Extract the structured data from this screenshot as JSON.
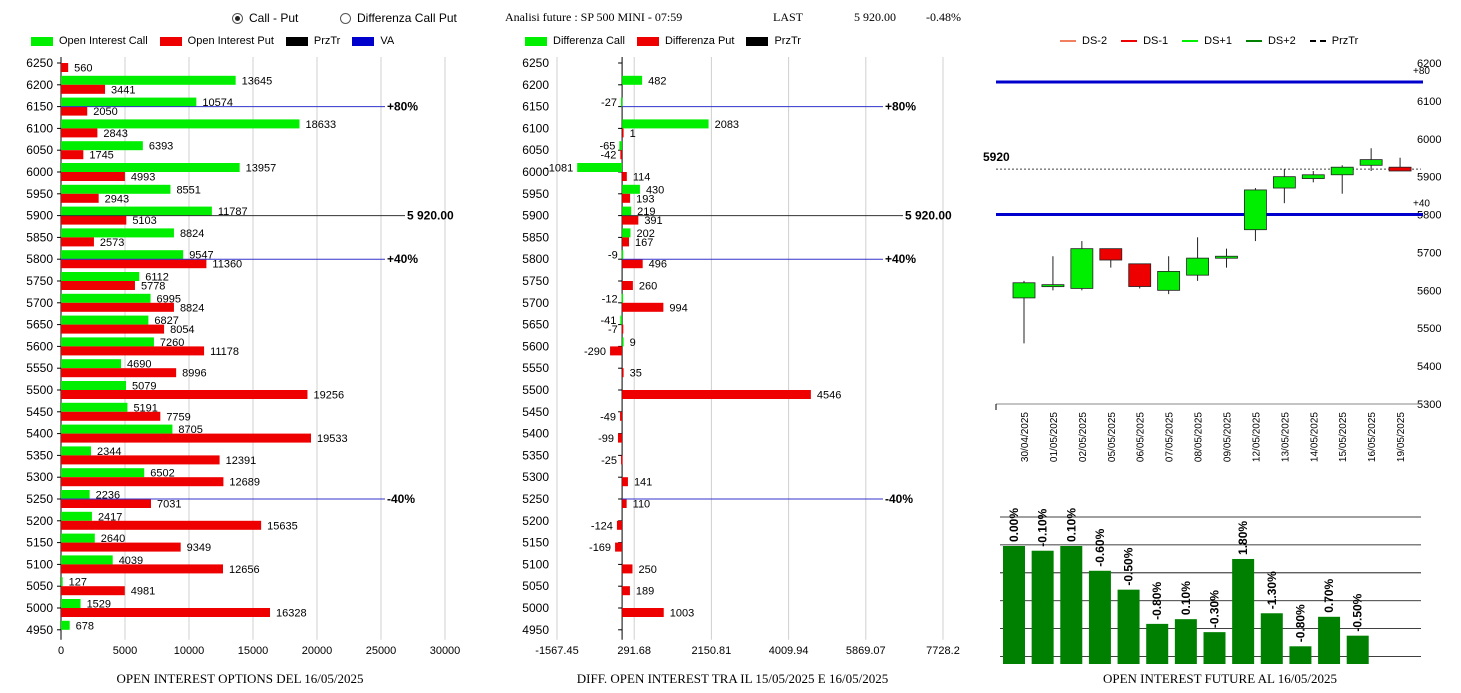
{
  "header": {
    "radio_call_put": "Call - Put",
    "radio_diff": "Differenza Call Put",
    "analysis": "Analisi future : SP 500 MINI - 07:59",
    "last_label": "LAST",
    "last_value": "5 920.00",
    "last_change": "-0.48%"
  },
  "legend1": {
    "call": "Open Interest Call",
    "put": "Open Interest Put",
    "prztr": "PrzTr",
    "va": "VA"
  },
  "legend2": {
    "call": "Differenza Call",
    "put": "Differenza Put",
    "prztr": "PrzTr"
  },
  "legend3": {
    "ds_m2": "DS-2",
    "ds_m1": "DS-1",
    "ds_p1": "DS+1",
    "ds_p2": "DS+2",
    "prztr": "PrzTr"
  },
  "captions": {
    "c1": "OPEN INTEREST OPTIONS DEL 16/05/2025",
    "c2": "DIFF. OPEN INTEREST TRA IL 15/05/2025 E 16/05/2025",
    "c3": "OPEN INTEREST FUTURE AL 16/05/2025"
  },
  "colors": {
    "green": "#00ee00",
    "red": "#ee0000",
    "blue": "#0000cc",
    "darkgreen": "#008000"
  },
  "chart_data": [
    {
      "type": "bar",
      "orientation": "horizontal",
      "title": "OPEN INTEREST OPTIONS DEL 16/05/2025",
      "categories": [
        "6250",
        "6200",
        "6150",
        "6100",
        "6050",
        "6000",
        "5950",
        "5900",
        "5850",
        "5800",
        "5750",
        "5700",
        "5650",
        "5600",
        "5550",
        "5500",
        "5450",
        "5400",
        "5350",
        "5300",
        "5250",
        "5200",
        "5150",
        "5100",
        "5050",
        "5000",
        "4950"
      ],
      "series": [
        {
          "name": "Open Interest Call",
          "values": [
            null,
            13645,
            10574,
            18633,
            6393,
            13957,
            8551,
            11787,
            8824,
            9547,
            6112,
            6995,
            6827,
            7260,
            4690,
            5079,
            5191,
            8705,
            2344,
            6502,
            2236,
            2417,
            2640,
            4039,
            127,
            1529,
            678
          ]
        },
        {
          "name": "Open Interest Put",
          "values": [
            560,
            3441,
            2050,
            2843,
            1745,
            4993,
            2943,
            5103,
            2573,
            11360,
            5778,
            8824,
            8054,
            11178,
            8996,
            19256,
            7759,
            19533,
            12391,
            12689,
            7031,
            15635,
            9349,
            12656,
            4981,
            16328,
            null
          ]
        }
      ],
      "xticks": [
        "0",
        "5000",
        "10000",
        "15000",
        "20000",
        "25000",
        "30000"
      ],
      "xlim": [
        0,
        30000
      ],
      "reference_lines": [
        {
          "level": "6150",
          "label": "+80%"
        },
        {
          "level": "5900",
          "label": "5 920.00"
        },
        {
          "level": "5800",
          "label": "+40%"
        },
        {
          "level": "5250",
          "label": "-40%"
        }
      ]
    },
    {
      "type": "bar",
      "orientation": "horizontal",
      "title": "DIFF. OPEN INTEREST TRA IL 15/05/2025 E 16/05/2025",
      "categories": [
        "6250",
        "6200",
        "6150",
        "6100",
        "6050",
        "6000",
        "5950",
        "5900",
        "5850",
        "5800",
        "5750",
        "5700",
        "5650",
        "5600",
        "5550",
        "5500",
        "5450",
        "5400",
        "5350",
        "5300",
        "5250",
        "5200",
        "5150",
        "5100",
        "5050",
        "5000",
        "4950"
      ],
      "series": [
        {
          "name": "Differenza Call",
          "values": [
            null,
            482,
            -27,
            2083,
            -65,
            -1081,
            430,
            219,
            202,
            -9,
            null,
            -12,
            -41,
            9,
            null,
            null,
            null,
            null,
            null,
            null,
            null,
            null,
            null,
            null,
            null,
            null,
            null
          ]
        },
        {
          "name": "Differenza Put",
          "values": [
            null,
            null,
            null,
            1,
            -42,
            114,
            193,
            391,
            167,
            496,
            260,
            994,
            -7,
            -290,
            35,
            4546,
            -49,
            -99,
            -25,
            141,
            110,
            -124,
            -169,
            250,
            189,
            1003,
            null
          ]
        }
      ],
      "xticks": [
        "-1567.45",
        "291.68",
        "2150.81",
        "4009.94",
        "5869.07",
        "7728.2"
      ],
      "xlim": [
        -1567.45,
        7728.2
      ],
      "reference_lines": [
        {
          "level": "6150",
          "label": "+80%"
        },
        {
          "level": "5900",
          "label": "5 920.00"
        },
        {
          "level": "5800",
          "label": "+40%"
        },
        {
          "level": "5250",
          "label": "-40%"
        }
      ]
    },
    {
      "type": "candlestick",
      "categories": [
        "30/04/2025",
        "01/05/2025",
        "02/05/2025",
        "05/05/2025",
        "06/05/2025",
        "07/05/2025",
        "08/05/2025",
        "09/05/2025",
        "12/05/2025",
        "13/05/2025",
        "14/05/2025",
        "15/05/2025",
        "16/05/2025",
        "19/05/2025"
      ],
      "ohlc": [
        [
          5580,
          5625,
          5460,
          5620
        ],
        [
          5610,
          5690,
          5600,
          5615
        ],
        [
          5605,
          5730,
          5600,
          5710
        ],
        [
          5710,
          5710,
          5660,
          5680
        ],
        [
          5670,
          5670,
          5605,
          5610
        ],
        [
          5600,
          5690,
          5590,
          5650
        ],
        [
          5640,
          5740,
          5625,
          5685
        ],
        [
          5685,
          5710,
          5660,
          5690
        ],
        [
          5760,
          5870,
          5730,
          5865
        ],
        [
          5870,
          5920,
          5830,
          5900
        ],
        [
          5895,
          5915,
          5885,
          5905
        ],
        [
          5905,
          5930,
          5855,
          5925
        ],
        [
          5930,
          5975,
          5915,
          5945
        ],
        [
          5925,
          5950,
          5915,
          5915
        ]
      ],
      "colors_up_down": [
        "#00ee00",
        "#ee0000"
      ],
      "ylim": [
        5300,
        6200
      ],
      "yticks": [
        "5300",
        "5400",
        "5500",
        "5600",
        "5700",
        "5800",
        "5900",
        "6000",
        "6100",
        "6200"
      ],
      "price_label": "5920",
      "price": 5920,
      "bands": [
        {
          "label": "+80",
          "value": 6150
        },
        {
          "label": "+40",
          "value": 5800
        }
      ]
    },
    {
      "type": "bar",
      "categories": [
        "30/04/2025",
        "01/05/2025",
        "02/05/2025",
        "05/05/2025",
        "06/05/2025",
        "07/05/2025",
        "08/05/2025",
        "09/05/2025",
        "12/05/2025",
        "13/05/2025",
        "14/05/2025",
        "15/05/2025",
        "16/05/2025",
        "19/05/2025"
      ],
      "labels": [
        "0.00%",
        "-0.10%",
        "0.10%",
        "-0.60%",
        "-0.50%",
        "-0.80%",
        "0.10%",
        "-0.30%",
        "1.80%",
        "-1.30%",
        "-0.80%",
        "0.70%",
        "-0.50%"
      ],
      "values": [
        100,
        96,
        100,
        79,
        63,
        34,
        38,
        27,
        89,
        43,
        15,
        40,
        24
      ],
      "units": "relative height (% of tallest bar)",
      "grid": true
    }
  ]
}
